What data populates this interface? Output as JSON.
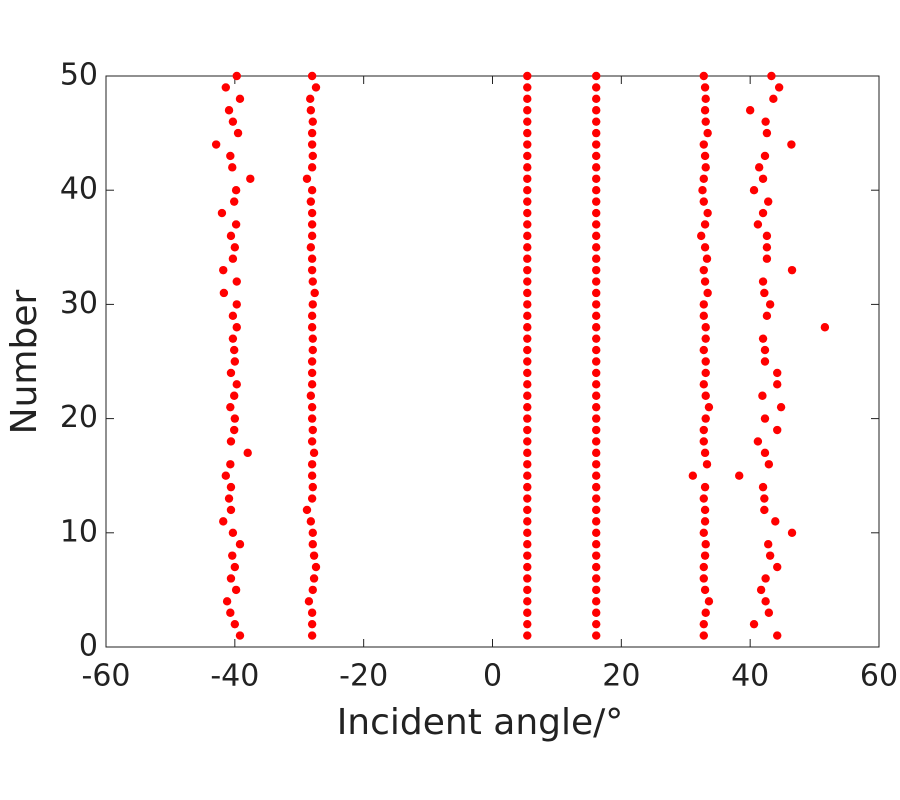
{
  "chart_data": {
    "type": "scatter",
    "xlabel": "Incident angle/°",
    "ylabel": "Number",
    "color": "#ff0000",
    "xlim": [
      -60,
      60
    ],
    "ylim": [
      0,
      50
    ],
    "xticks": [
      -60,
      -40,
      -20,
      0,
      20,
      40,
      60
    ],
    "yticks": [
      0,
      10,
      20,
      30,
      40,
      50
    ],
    "x": [
      -39.2,
      -40.0,
      -40.7,
      -41.2,
      -39.8,
      -40.6,
      -40.0,
      -40.4,
      -39.2,
      -40.3,
      -41.8,
      -40.6,
      -40.9,
      -40.6,
      -41.4,
      -40.7,
      -38.0,
      -40.6,
      -40.1,
      -40.0,
      -40.7,
      -40.1,
      -39.7,
      -40.6,
      -40.0,
      -40.1,
      -40.3,
      -39.7,
      -40.3,
      -39.7,
      -41.7,
      -39.7,
      -41.8,
      -40.3,
      -40.0,
      -40.6,
      -39.8,
      -42.0,
      -40.1,
      -39.8,
      -37.6,
      -40.4,
      -40.7,
      -42.9,
      -39.5,
      -40.3,
      -40.9,
      -39.2,
      -41.4,
      -39.7,
      -28.0,
      -28.0,
      -28.0,
      -28.5,
      -27.9,
      -27.7,
      -27.4,
      -27.7,
      -27.9,
      -27.9,
      -28.2,
      -28.8,
      -28.0,
      -27.9,
      -28.0,
      -28.0,
      -27.7,
      -28.0,
      -27.9,
      -28.0,
      -28.0,
      -28.2,
      -28.0,
      -28.0,
      -28.0,
      -27.9,
      -27.9,
      -28.0,
      -28.0,
      -27.9,
      -27.6,
      -27.9,
      -28.0,
      -28.0,
      -28.2,
      -28.0,
      -28.0,
      -28.0,
      -28.2,
      -28.0,
      -28.8,
      -28.0,
      -27.9,
      -28.0,
      -28.0,
      -27.9,
      -28.2,
      -28.3,
      -27.4,
      -28.0,
      5.4,
      5.4,
      5.4,
      5.4,
      5.4,
      5.4,
      5.4,
      5.4,
      5.4,
      5.4,
      5.4,
      5.4,
      5.4,
      5.4,
      5.4,
      5.4,
      5.4,
      5.4,
      5.4,
      5.4,
      5.4,
      5.4,
      5.4,
      5.4,
      5.4,
      5.4,
      5.4,
      5.4,
      5.4,
      5.4,
      5.4,
      5.4,
      5.4,
      5.4,
      5.4,
      5.4,
      5.4,
      5.4,
      5.4,
      5.4,
      5.4,
      5.4,
      5.4,
      5.4,
      5.4,
      5.4,
      5.4,
      5.4,
      5.4,
      5.4,
      16.1,
      16.1,
      16.1,
      16.1,
      16.1,
      16.1,
      16.1,
      16.1,
      16.1,
      16.1,
      16.1,
      16.1,
      16.1,
      16.1,
      16.1,
      16.1,
      16.1,
      16.1,
      16.1,
      16.1,
      16.1,
      16.1,
      16.1,
      16.1,
      16.1,
      16.1,
      16.1,
      16.1,
      16.1,
      16.1,
      16.1,
      16.1,
      16.1,
      16.1,
      16.1,
      16.1,
      16.1,
      16.1,
      16.1,
      16.1,
      16.1,
      16.1,
      16.1,
      16.1,
      16.1,
      16.1,
      16.1,
      16.1,
      16.1,
      16.1,
      32.8,
      32.8,
      33.1,
      33.6,
      33.0,
      32.8,
      32.8,
      33.0,
      33.1,
      32.8,
      33.0,
      33.0,
      32.8,
      33.0,
      31.1,
      33.3,
      33.0,
      32.8,
      32.8,
      33.1,
      33.6,
      33.1,
      32.8,
      33.1,
      33.1,
      32.8,
      33.1,
      33.1,
      32.8,
      32.8,
      33.4,
      33.0,
      32.8,
      33.3,
      33.0,
      32.4,
      33.0,
      33.4,
      32.8,
      32.6,
      32.8,
      33.1,
      33.0,
      32.8,
      33.4,
      33.1,
      33.0,
      33.1,
      33.0,
      32.8,
      44.2,
      40.6,
      42.9,
      42.4,
      41.7,
      42.4,
      44.2,
      43.1,
      42.8,
      46.5,
      43.9,
      42.2,
      42.2,
      42.0,
      38.3,
      42.9,
      42.3,
      41.2,
      44.2,
      42.3,
      44.8,
      41.9,
      44.2,
      44.2,
      42.3,
      42.3,
      42.0,
      51.6,
      42.6,
      43.1,
      42.2,
      42.0,
      46.5,
      42.6,
      42.6,
      42.6,
      41.2,
      42.0,
      42.8,
      40.6,
      42.0,
      41.4,
      42.3,
      46.4,
      42.6,
      42.4,
      40.0,
      43.6,
      44.5,
      43.3
    ],
    "values": [
      1,
      2,
      3,
      4,
      5,
      6,
      7,
      8,
      9,
      10,
      11,
      12,
      13,
      14,
      15,
      16,
      17,
      18,
      19,
      20,
      21,
      22,
      23,
      24,
      25,
      26,
      27,
      28,
      29,
      30,
      31,
      32,
      33,
      34,
      35,
      36,
      37,
      38,
      39,
      40,
      41,
      42,
      43,
      44,
      45,
      46,
      47,
      48,
      49,
      50,
      1,
      2,
      3,
      4,
      5,
      6,
      7,
      8,
      9,
      10,
      11,
      12,
      13,
      14,
      15,
      16,
      17,
      18,
      19,
      20,
      21,
      22,
      23,
      24,
      25,
      26,
      27,
      28,
      29,
      30,
      31,
      32,
      33,
      34,
      35,
      36,
      37,
      38,
      39,
      40,
      41,
      42,
      43,
      44,
      45,
      46,
      47,
      48,
      49,
      50,
      1,
      2,
      3,
      4,
      5,
      6,
      7,
      8,
      9,
      10,
      11,
      12,
      13,
      14,
      15,
      16,
      17,
      18,
      19,
      20,
      21,
      22,
      23,
      24,
      25,
      26,
      27,
      28,
      29,
      30,
      31,
      32,
      33,
      34,
      35,
      36,
      37,
      38,
      39,
      40,
      41,
      42,
      43,
      44,
      45,
      46,
      47,
      48,
      49,
      50,
      1,
      2,
      3,
      4,
      5,
      6,
      7,
      8,
      9,
      10,
      11,
      12,
      13,
      14,
      15,
      16,
      17,
      18,
      19,
      20,
      21,
      22,
      23,
      24,
      25,
      26,
      27,
      28,
      29,
      30,
      31,
      32,
      33,
      34,
      35,
      36,
      37,
      38,
      39,
      40,
      41,
      42,
      43,
      44,
      45,
      46,
      47,
      48,
      49,
      50,
      1,
      2,
      3,
      4,
      5,
      6,
      7,
      8,
      9,
      10,
      11,
      12,
      13,
      14,
      15,
      16,
      17,
      18,
      19,
      20,
      21,
      22,
      23,
      24,
      25,
      26,
      27,
      28,
      29,
      30,
      31,
      32,
      33,
      34,
      35,
      36,
      37,
      38,
      39,
      40,
      41,
      42,
      43,
      44,
      45,
      46,
      47,
      48,
      49,
      50,
      1,
      2,
      3,
      4,
      5,
      6,
      7,
      8,
      9,
      10,
      11,
      12,
      13,
      14,
      15,
      16,
      17,
      18,
      19,
      20,
      21,
      22,
      23,
      24,
      25,
      26,
      27,
      28,
      29,
      30,
      31,
      32,
      33,
      34,
      35,
      36,
      37,
      38,
      39,
      40,
      41,
      42,
      43,
      44,
      45,
      46,
      47,
      48,
      49,
      50
    ]
  }
}
